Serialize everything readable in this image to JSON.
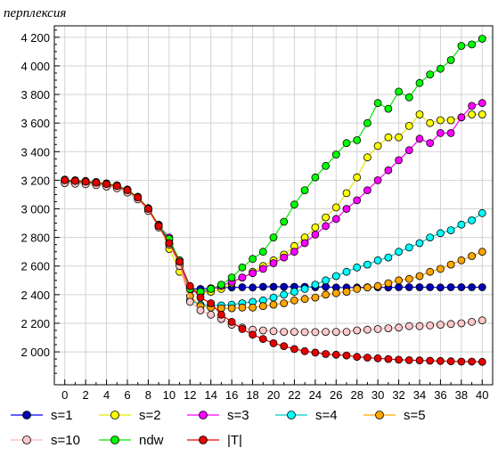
{
  "chart_data": {
    "type": "line",
    "ylabel": "перплексия",
    "xlabel": "",
    "xlim": [
      -1,
      41
    ],
    "ylim": [
      1770,
      4280
    ],
    "x_ticks": [
      0,
      2,
      4,
      6,
      8,
      10,
      12,
      14,
      16,
      18,
      20,
      22,
      24,
      26,
      28,
      30,
      32,
      34,
      36,
      38,
      40
    ],
    "x_tick_labels": [
      "0",
      "2",
      "4",
      "6",
      "8",
      "10",
      "12",
      "14",
      "16",
      "18",
      "20",
      "22",
      "24",
      "26",
      "28",
      "30",
      "32",
      "34",
      "36",
      "38",
      "40"
    ],
    "y_ticks": [
      2000,
      2200,
      2400,
      2600,
      2800,
      3000,
      3200,
      3400,
      3600,
      3800,
      4000,
      4200
    ],
    "y_tick_labels": [
      "2 000",
      "2 200",
      "2 400",
      "2 600",
      "2 800",
      "3 000",
      "3 200",
      "3 400",
      "3 600",
      "3 800",
      "4 000",
      "4 200"
    ],
    "grid": true,
    "legend_position": "bottom",
    "x": [
      0,
      1,
      2,
      3,
      4,
      5,
      6,
      7,
      8,
      9,
      10,
      11,
      12,
      13,
      14,
      15,
      16,
      17,
      18,
      19,
      20,
      21,
      22,
      23,
      24,
      25,
      26,
      27,
      28,
      29,
      30,
      31,
      32,
      33,
      34,
      35,
      36,
      37,
      38,
      39,
      40
    ],
    "series": [
      {
        "name": "s=1",
        "color": "#0000b4",
        "line_color": "#0000ff",
        "values": [
          3195,
          3192,
          3188,
          3182,
          3172,
          3160,
          3130,
          3080,
          3000,
          2880,
          2780,
          2640,
          2440,
          2440,
          2445,
          2450,
          2450,
          2452,
          2450,
          2455,
          2455,
          2455,
          2455,
          2455,
          2452,
          2455,
          2450,
          2450,
          2450,
          2452,
          2452,
          2450,
          2452,
          2452,
          2452,
          2452,
          2450,
          2452,
          2452,
          2452,
          2452
        ]
      },
      {
        "name": "s=2",
        "color": "#ffff00",
        "line_color": "#e6e600",
        "values": [
          3205,
          3200,
          3195,
          3188,
          3178,
          3165,
          3135,
          3085,
          3005,
          2890,
          2720,
          2560,
          2440,
          2410,
          2420,
          2440,
          2480,
          2520,
          2560,
          2600,
          2640,
          2680,
          2740,
          2800,
          2870,
          2940,
          3010,
          3110,
          3220,
          3360,
          3440,
          3500,
          3500,
          3580,
          3660,
          3600,
          3620,
          3620,
          3640,
          3660,
          3660
        ]
      },
      {
        "name": "s=3",
        "color": "#ff00ff",
        "line_color": "#ff00ff",
        "values": [
          3200,
          3195,
          3190,
          3184,
          3174,
          3162,
          3132,
          3082,
          3002,
          2885,
          2800,
          2620,
          2430,
          2410,
          2440,
          2460,
          2490,
          2520,
          2550,
          2580,
          2620,
          2660,
          2700,
          2760,
          2820,
          2880,
          2930,
          3000,
          3060,
          3130,
          3200,
          3270,
          3340,
          3410,
          3490,
          3460,
          3530,
          3530,
          3640,
          3720,
          3740
        ]
      },
      {
        "name": "s=4",
        "color": "#00ffff",
        "line_color": "#00c8c8",
        "values": [
          3190,
          3185,
          3180,
          3175,
          3165,
          3152,
          3122,
          3075,
          2995,
          2880,
          2760,
          2620,
          2360,
          2330,
          2325,
          2325,
          2330,
          2340,
          2350,
          2360,
          2380,
          2400,
          2420,
          2440,
          2470,
          2500,
          2530,
          2560,
          2590,
          2610,
          2640,
          2660,
          2700,
          2730,
          2760,
          2800,
          2830,
          2850,
          2890,
          2920,
          2970
        ]
      },
      {
        "name": "s=5",
        "color": "#ffa500",
        "line_color": "#ffa500",
        "values": [
          3185,
          3180,
          3176,
          3170,
          3160,
          3148,
          3118,
          3070,
          2990,
          2875,
          2755,
          2610,
          2390,
          2320,
          2310,
          2305,
          2305,
          2310,
          2310,
          2320,
          2330,
          2340,
          2360,
          2370,
          2380,
          2400,
          2410,
          2420,
          2440,
          2450,
          2460,
          2480,
          2500,
          2510,
          2530,
          2560,
          2580,
          2610,
          2640,
          2670,
          2700
        ]
      },
      {
        "name": "s=10",
        "color": "#ffc8c8",
        "line_color": "#ffb4b4",
        "values": [
          3180,
          3176,
          3172,
          3166,
          3156,
          3144,
          3114,
          3066,
          2985,
          2870,
          2750,
          2600,
          2350,
          2290,
          2260,
          2230,
          2190,
          2170,
          2155,
          2150,
          2145,
          2140,
          2140,
          2138,
          2138,
          2140,
          2140,
          2140,
          2150,
          2155,
          2160,
          2165,
          2170,
          2180,
          2180,
          2185,
          2190,
          2195,
          2200,
          2210,
          2220
        ]
      },
      {
        "name": "ndw",
        "color": "#00ff00",
        "line_color": "#00e600",
        "values": [
          3202,
          3198,
          3193,
          3186,
          3176,
          3163,
          3133,
          3083,
          3003,
          2885,
          2790,
          2640,
          2440,
          2420,
          2440,
          2470,
          2520,
          2590,
          2650,
          2700,
          2800,
          2910,
          3030,
          3130,
          3220,
          3300,
          3380,
          3460,
          3480,
          3600,
          3740,
          3700,
          3820,
          3780,
          3880,
          3940,
          3980,
          4040,
          4140,
          4150,
          4190
        ]
      },
      {
        "name": "|T|",
        "color": "#e60000",
        "line_color": "#e60000",
        "values": [
          3200,
          3195,
          3190,
          3183,
          3173,
          3160,
          3130,
          3080,
          3000,
          2880,
          2760,
          2630,
          2460,
          2380,
          2340,
          2260,
          2210,
          2160,
          2120,
          2090,
          2060,
          2040,
          2020,
          2005,
          1995,
          1985,
          1980,
          1975,
          1965,
          1960,
          1955,
          1950,
          1945,
          1942,
          1940,
          1938,
          1936,
          1934,
          1932,
          1932,
          1930
        ]
      }
    ]
  }
}
